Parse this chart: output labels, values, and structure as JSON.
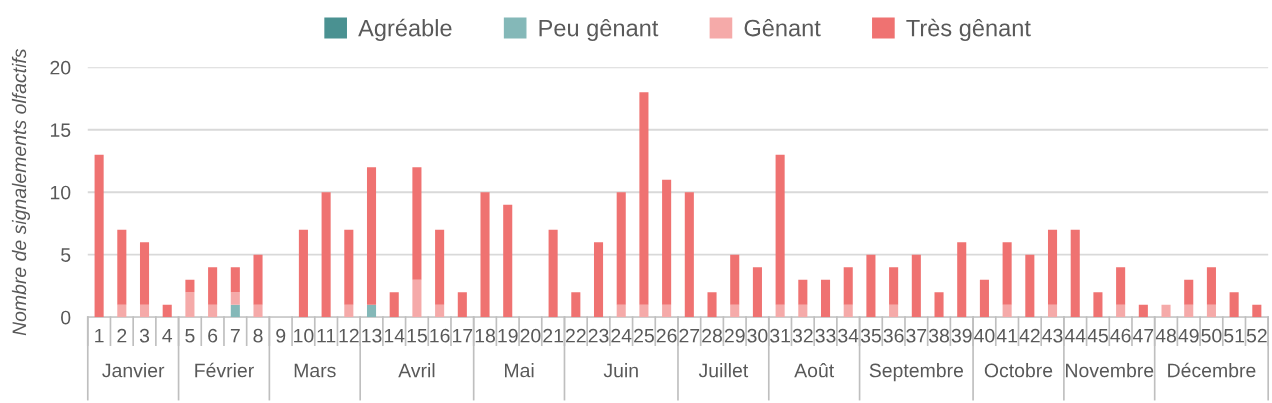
{
  "chart_data": {
    "type": "bar",
    "stacked": true,
    "ylabel": "Nombre de signalements olfactifs",
    "categories": [
      "1",
      "2",
      "3",
      "4",
      "5",
      "6",
      "7",
      "8",
      "9",
      "10",
      "11",
      "12",
      "13",
      "14",
      "15",
      "16",
      "17",
      "18",
      "19",
      "20",
      "21",
      "22",
      "23",
      "24",
      "25",
      "26",
      "27",
      "28",
      "29",
      "30",
      "31",
      "32",
      "33",
      "34",
      "35",
      "36",
      "37",
      "38",
      "39",
      "40",
      "41",
      "42",
      "43",
      "44",
      "45",
      "46",
      "47",
      "48",
      "49",
      "50",
      "51",
      "52"
    ],
    "series": [
      {
        "name": "Agréable",
        "color": "#4a9191",
        "values": [
          0,
          0,
          0,
          0,
          0,
          0,
          0,
          0,
          0,
          0,
          0,
          0,
          0,
          0,
          0,
          0,
          0,
          0,
          0,
          0,
          0,
          0,
          0,
          0,
          0,
          0,
          0,
          0,
          0,
          0,
          0,
          0,
          0,
          0,
          0,
          0,
          0,
          0,
          0,
          0,
          0,
          0,
          0,
          0,
          0,
          0,
          0,
          0,
          0,
          0,
          0,
          0
        ]
      },
      {
        "name": "Peu gênant",
        "color": "#84b8b8",
        "values": [
          0,
          0,
          0,
          0,
          0,
          0,
          1,
          0,
          0,
          0,
          0,
          0,
          1,
          0,
          0,
          0,
          0,
          0,
          0,
          0,
          0,
          0,
          0,
          0,
          0,
          0,
          0,
          0,
          0,
          0,
          0,
          0,
          0,
          0,
          0,
          0,
          0,
          0,
          0,
          0,
          0,
          0,
          0,
          0,
          0,
          0,
          0,
          0,
          0,
          0,
          0,
          0
        ]
      },
      {
        "name": "Gênant",
        "color": "#f5aaa9",
        "values": [
          0,
          1,
          1,
          0,
          2,
          1,
          1,
          1,
          0,
          0,
          0,
          1,
          0,
          0,
          3,
          1,
          0,
          0,
          0,
          0,
          0,
          0,
          0,
          1,
          1,
          1,
          0,
          0,
          1,
          0,
          1,
          1,
          0,
          1,
          0,
          1,
          0,
          0,
          0,
          0,
          1,
          0,
          1,
          0,
          0,
          1,
          0,
          1,
          1,
          1,
          0,
          0
        ]
      },
      {
        "name": "Très gênant",
        "color": "#ef7271",
        "values": [
          13,
          6,
          5,
          1,
          1,
          3,
          2,
          4,
          0,
          7,
          10,
          6,
          11,
          2,
          9,
          6,
          2,
          10,
          9,
          0,
          7,
          2,
          6,
          9,
          17,
          10,
          10,
          2,
          4,
          4,
          12,
          2,
          3,
          3,
          5,
          3,
          5,
          2,
          6,
          3,
          5,
          5,
          6,
          7,
          2,
          3,
          1,
          0,
          2,
          3,
          2,
          1
        ]
      }
    ],
    "ylim": [
      0,
      20
    ],
    "yticks": [
      0,
      5,
      10,
      15,
      20
    ],
    "grid": "y",
    "legend": "top",
    "annotations": [
      "Janvier",
      "Février",
      "Mars",
      "Avril",
      "Mai",
      "Juin",
      "Juillet",
      "Août",
      "Septembre",
      "Octobre",
      "Novembre",
      "Décembre"
    ]
  }
}
